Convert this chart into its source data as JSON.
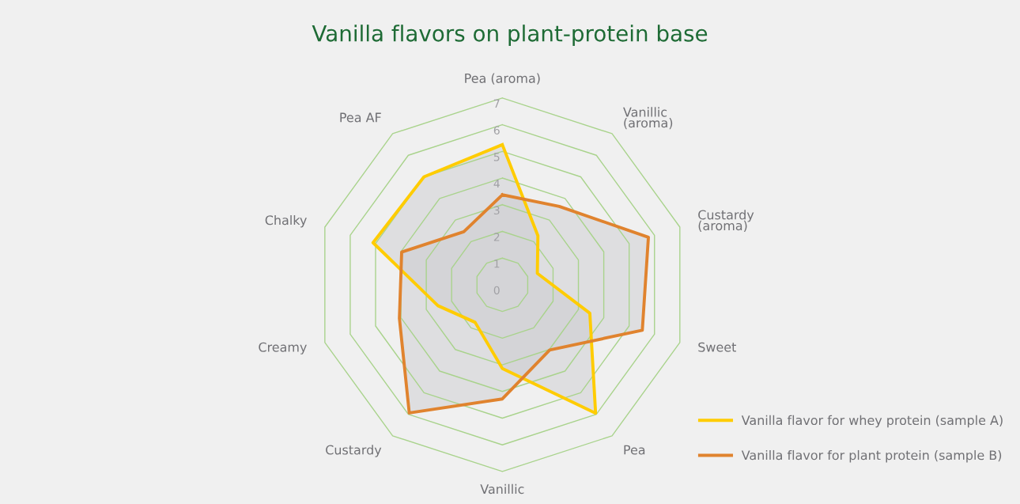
{
  "chart_data": {
    "type": "radar",
    "title": "Vanilla flavors on plant-protein base",
    "categories": [
      "Pea (aroma)",
      "Vanillic\n(aroma)",
      "Custardy\n(aroma)",
      "Sweet",
      "Pea",
      "Vanillic",
      "Custardy",
      "Creamy",
      "Chalky",
      "Pea AF"
    ],
    "series": [
      {
        "name": "Vanilla flavor for whey protein (sample A)",
        "color": "#ffcc00",
        "values": [
          5.25,
          2.27,
          1.38,
          3.45,
          5.95,
          3.14,
          1.74,
          2.54,
          5.1,
          5.0
        ]
      },
      {
        "name": "Vanilla flavor for plant protein (sample B)",
        "color": "#e0832e",
        "values": [
          3.37,
          3.63,
          5.76,
          5.52,
          3.02,
          4.28,
          5.94,
          4.06,
          3.97,
          2.46
        ]
      }
    ],
    "ylim": [
      0,
      7
    ],
    "yticks": [
      0,
      1,
      2,
      3,
      4,
      5,
      6,
      7
    ],
    "grid": true,
    "legend": "bottom right"
  }
}
